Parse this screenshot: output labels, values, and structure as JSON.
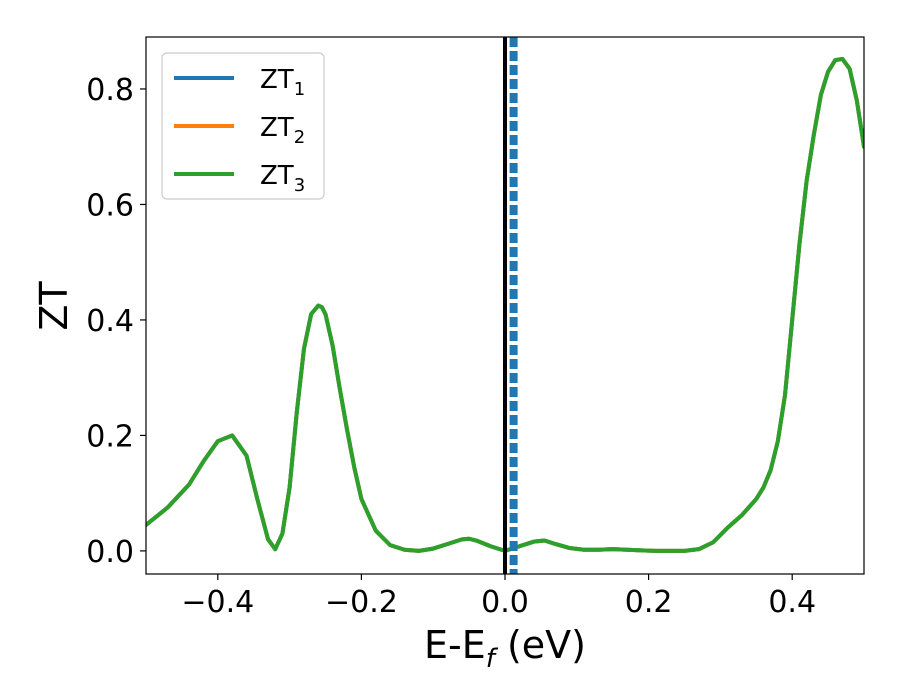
{
  "chart_data": {
    "type": "line",
    "xlabel": "E-E",
    "xlabel_sub": "f",
    "xlabel_unit": " (eV)",
    "ylabel": "ZT",
    "xlim": [
      -0.5,
      0.5
    ],
    "ylim": [
      -0.04,
      0.89
    ],
    "xticks": [
      -0.4,
      -0.2,
      0.0,
      0.2,
      0.4
    ],
    "xtick_labels": [
      "−0.4",
      "−0.2",
      "0.0",
      "0.2",
      "0.4"
    ],
    "yticks": [
      0.0,
      0.2,
      0.4,
      0.6,
      0.8
    ],
    "ytick_labels": [
      "0.0",
      "0.2",
      "0.4",
      "0.6",
      "0.8"
    ],
    "grid": false,
    "legend_position": "upper-left",
    "vertical_lines": [
      {
        "x": 0.0,
        "style": "solid",
        "color": "#000000"
      },
      {
        "x": 0.012,
        "style": "dashed",
        "color": "#1f77b4"
      }
    ],
    "series": [
      {
        "name": "ZT",
        "name_sub": "1",
        "color": "#1f77b4",
        "x": [
          -0.5,
          -0.47,
          -0.44,
          -0.42,
          -0.4,
          -0.38,
          -0.36,
          -0.345,
          -0.33,
          -0.32,
          -0.31,
          -0.3,
          -0.29,
          -0.28,
          -0.27,
          -0.26,
          -0.255,
          -0.25,
          -0.24,
          -0.23,
          -0.22,
          -0.21,
          -0.2,
          -0.18,
          -0.16,
          -0.14,
          -0.12,
          -0.1,
          -0.08,
          -0.06,
          -0.05,
          -0.04,
          -0.02,
          0.0,
          0.02,
          0.04,
          0.055,
          0.07,
          0.09,
          0.11,
          0.13,
          0.15,
          0.17,
          0.19,
          0.21,
          0.23,
          0.25,
          0.27,
          0.29,
          0.31,
          0.33,
          0.35,
          0.36,
          0.37,
          0.38,
          0.39,
          0.4,
          0.41,
          0.42,
          0.43,
          0.44,
          0.45,
          0.46,
          0.47,
          0.48,
          0.49,
          0.5
        ],
        "y": [
          0.045,
          0.075,
          0.115,
          0.155,
          0.19,
          0.2,
          0.165,
          0.09,
          0.02,
          0.003,
          0.03,
          0.11,
          0.24,
          0.35,
          0.41,
          0.425,
          0.422,
          0.41,
          0.355,
          0.28,
          0.21,
          0.145,
          0.09,
          0.035,
          0.01,
          0.002,
          0.0,
          0.004,
          0.012,
          0.02,
          0.021,
          0.018,
          0.008,
          0.0,
          0.008,
          0.016,
          0.018,
          0.012,
          0.005,
          0.002,
          0.002,
          0.003,
          0.002,
          0.001,
          0.0,
          0.0,
          0.0,
          0.003,
          0.015,
          0.04,
          0.062,
          0.09,
          0.11,
          0.14,
          0.19,
          0.27,
          0.4,
          0.53,
          0.64,
          0.72,
          0.79,
          0.83,
          0.85,
          0.852,
          0.835,
          0.78,
          0.7
        ]
      },
      {
        "name": "ZT",
        "name_sub": "2",
        "color": "#ff7f0e",
        "x": [
          -0.5,
          -0.47,
          -0.44,
          -0.42,
          -0.4,
          -0.38,
          -0.36,
          -0.345,
          -0.33,
          -0.32,
          -0.31,
          -0.3,
          -0.29,
          -0.28,
          -0.27,
          -0.26,
          -0.255,
          -0.25,
          -0.24,
          -0.23,
          -0.22,
          -0.21,
          -0.2,
          -0.18,
          -0.16,
          -0.14,
          -0.12,
          -0.1,
          -0.08,
          -0.06,
          -0.05,
          -0.04,
          -0.02,
          0.0,
          0.02,
          0.04,
          0.055,
          0.07,
          0.09,
          0.11,
          0.13,
          0.15,
          0.17,
          0.19,
          0.21,
          0.23,
          0.25,
          0.27,
          0.29,
          0.31,
          0.33,
          0.35,
          0.36,
          0.37,
          0.38,
          0.39,
          0.4,
          0.41,
          0.42,
          0.43,
          0.44,
          0.45,
          0.46,
          0.47,
          0.48,
          0.49,
          0.5
        ],
        "y": [
          0.045,
          0.075,
          0.115,
          0.155,
          0.19,
          0.2,
          0.165,
          0.09,
          0.02,
          0.003,
          0.03,
          0.11,
          0.24,
          0.35,
          0.41,
          0.425,
          0.422,
          0.41,
          0.355,
          0.28,
          0.21,
          0.145,
          0.09,
          0.035,
          0.01,
          0.002,
          0.0,
          0.004,
          0.012,
          0.02,
          0.021,
          0.018,
          0.008,
          0.0,
          0.008,
          0.016,
          0.018,
          0.012,
          0.005,
          0.002,
          0.002,
          0.003,
          0.002,
          0.001,
          0.0,
          0.0,
          0.0,
          0.003,
          0.015,
          0.04,
          0.062,
          0.09,
          0.11,
          0.14,
          0.19,
          0.27,
          0.4,
          0.53,
          0.64,
          0.72,
          0.79,
          0.83,
          0.85,
          0.852,
          0.835,
          0.78,
          0.7
        ]
      },
      {
        "name": "ZT",
        "name_sub": "3",
        "color": "#2ca02c",
        "x": [
          -0.5,
          -0.47,
          -0.44,
          -0.42,
          -0.4,
          -0.38,
          -0.36,
          -0.345,
          -0.33,
          -0.32,
          -0.31,
          -0.3,
          -0.29,
          -0.28,
          -0.27,
          -0.26,
          -0.255,
          -0.25,
          -0.24,
          -0.23,
          -0.22,
          -0.21,
          -0.2,
          -0.18,
          -0.16,
          -0.14,
          -0.12,
          -0.1,
          -0.08,
          -0.06,
          -0.05,
          -0.04,
          -0.02,
          0.0,
          0.02,
          0.04,
          0.055,
          0.07,
          0.09,
          0.11,
          0.13,
          0.15,
          0.17,
          0.19,
          0.21,
          0.23,
          0.25,
          0.27,
          0.29,
          0.31,
          0.33,
          0.35,
          0.36,
          0.37,
          0.38,
          0.39,
          0.4,
          0.41,
          0.42,
          0.43,
          0.44,
          0.45,
          0.46,
          0.47,
          0.48,
          0.49,
          0.5
        ],
        "y": [
          0.045,
          0.075,
          0.115,
          0.155,
          0.19,
          0.2,
          0.165,
          0.09,
          0.02,
          0.003,
          0.03,
          0.11,
          0.24,
          0.35,
          0.41,
          0.425,
          0.422,
          0.41,
          0.355,
          0.28,
          0.21,
          0.145,
          0.09,
          0.035,
          0.01,
          0.002,
          0.0,
          0.004,
          0.012,
          0.02,
          0.021,
          0.018,
          0.008,
          0.0,
          0.008,
          0.016,
          0.018,
          0.012,
          0.005,
          0.002,
          0.002,
          0.003,
          0.002,
          0.001,
          0.0,
          0.0,
          0.0,
          0.003,
          0.015,
          0.04,
          0.062,
          0.09,
          0.11,
          0.14,
          0.19,
          0.27,
          0.4,
          0.53,
          0.64,
          0.72,
          0.79,
          0.83,
          0.85,
          0.852,
          0.835,
          0.78,
          0.7
        ]
      }
    ]
  }
}
